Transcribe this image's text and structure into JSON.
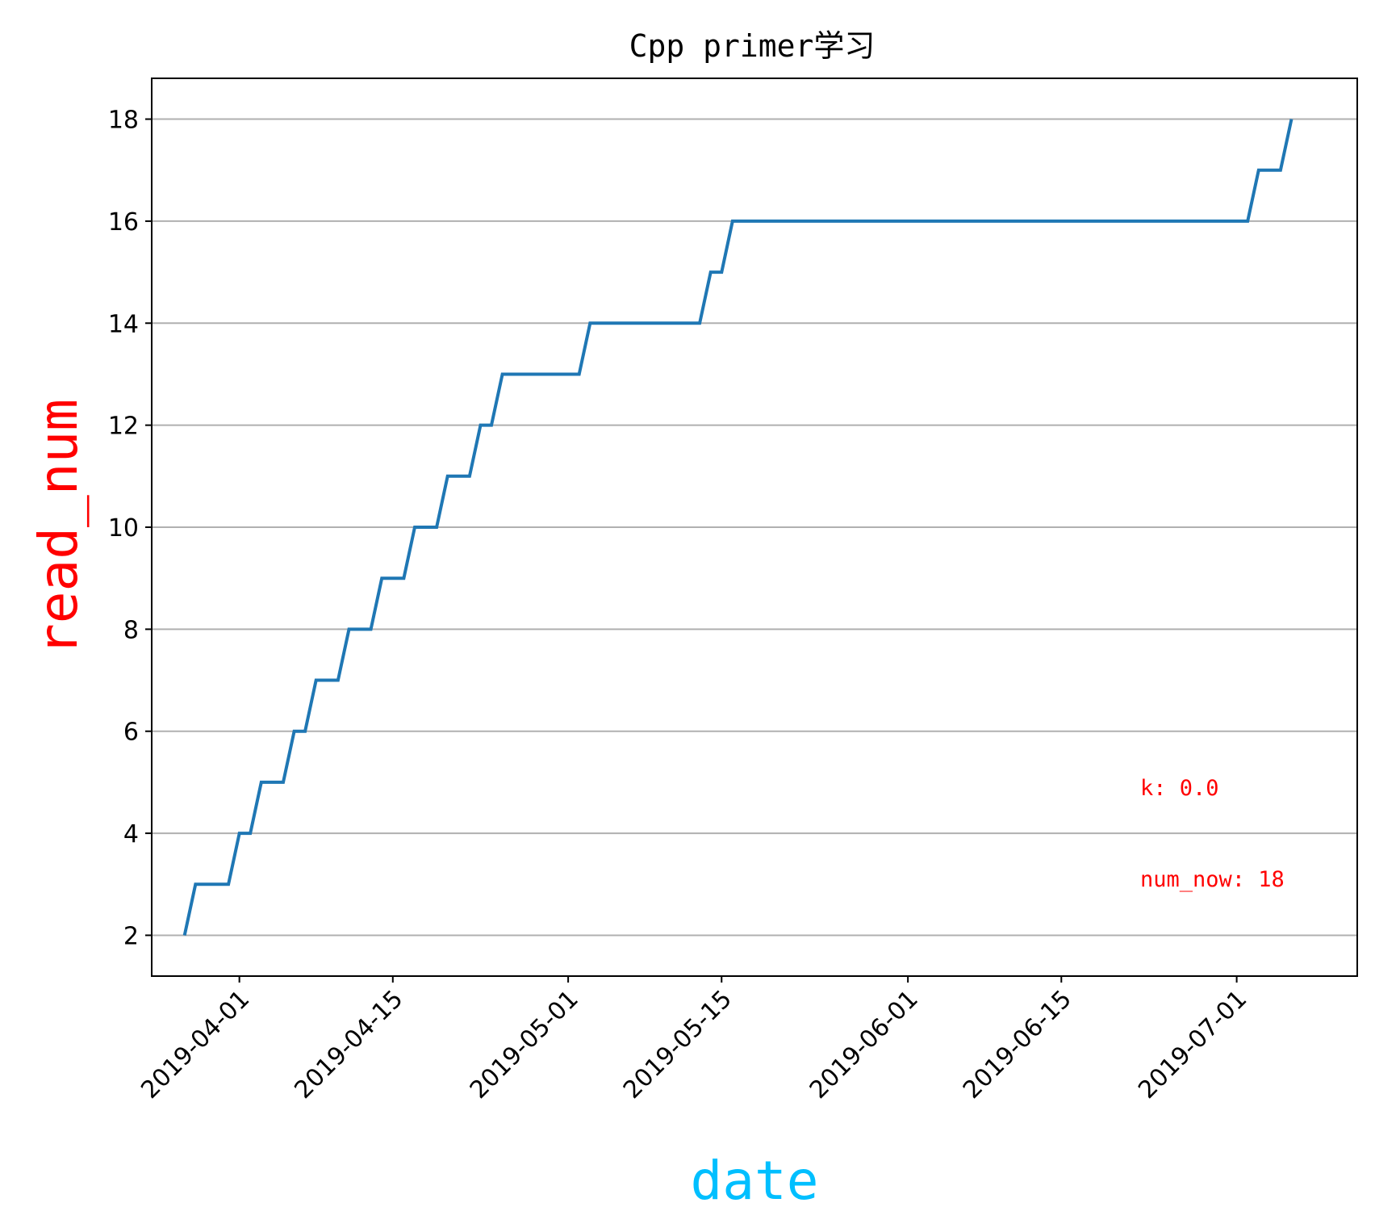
{
  "chart_data": {
    "type": "line",
    "title": "Cpp primer学习",
    "xlabel": "date",
    "ylabel": "read_num",
    "xlabel_color": "#00BFFF",
    "ylabel_color": "#FF0000",
    "line_color": "#1f77b4",
    "grid": "horizontal",
    "xlim": [
      "2019-03-24",
      "2019-07-12"
    ],
    "ylim": [
      1.2,
      18.8
    ],
    "yticks": [
      2,
      4,
      6,
      8,
      10,
      12,
      14,
      16,
      18
    ],
    "xticks": [
      "2019-04-01",
      "2019-04-15",
      "2019-05-01",
      "2019-05-15",
      "2019-06-01",
      "2019-06-15",
      "2019-07-01"
    ],
    "series": [
      {
        "x": [
          "2019-03-27",
          "2019-03-28",
          "2019-03-31",
          "2019-04-01",
          "2019-04-02",
          "2019-04-03",
          "2019-04-05",
          "2019-04-06",
          "2019-04-07",
          "2019-04-08",
          "2019-04-10",
          "2019-04-11",
          "2019-04-13",
          "2019-04-14",
          "2019-04-16",
          "2019-04-17",
          "2019-04-19",
          "2019-04-20",
          "2019-04-22",
          "2019-04-23",
          "2019-04-24",
          "2019-04-25",
          "2019-05-02",
          "2019-05-03",
          "2019-05-13",
          "2019-05-14",
          "2019-05-15",
          "2019-05-16",
          "2019-07-02",
          "2019-07-03",
          "2019-07-05",
          "2019-07-06"
        ],
        "values": [
          2,
          3,
          3,
          4,
          4,
          5,
          5,
          6,
          6,
          7,
          7,
          8,
          8,
          9,
          9,
          10,
          10,
          11,
          11,
          12,
          12,
          13,
          13,
          14,
          14,
          15,
          15,
          16,
          16,
          17,
          17,
          18
        ]
      }
    ],
    "annotations": [
      {
        "text": "k: 0.0",
        "color": "#FF0000"
      },
      {
        "text": "num_now: 18",
        "color": "#FF0000"
      }
    ]
  }
}
